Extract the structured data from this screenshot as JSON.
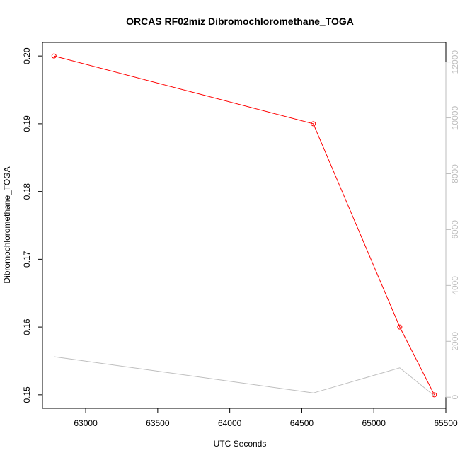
{
  "chart_data": {
    "type": "line",
    "title": "ORCAS RF02miz Dibromochloromethane_TOGA",
    "xlabel": "UTC Seconds",
    "ylabel": "Dibromochloromethane_TOGA",
    "xlim": [
      62700,
      65500
    ],
    "ylim": [
      0.148,
      0.202
    ],
    "y2lim": [
      -400,
      12700
    ],
    "x_ticks": [
      63000,
      63500,
      64000,
      64500,
      65000,
      65500
    ],
    "y_ticks": [
      0.15,
      0.16,
      0.17,
      0.18,
      0.19,
      0.2
    ],
    "y_tick_labels": [
      "0.15",
      "0.16",
      "0.17",
      "0.18",
      "0.19",
      "0.20"
    ],
    "y2_ticks": [
      0,
      2000,
      4000,
      6000,
      8000,
      10000,
      12000
    ],
    "grid": false,
    "series": [
      {
        "axis": "left",
        "color": "#ff0000",
        "markers": "open-circle",
        "x": [
          62780,
          64580,
          65180,
          65420
        ],
        "y": [
          0.2,
          0.19,
          0.16,
          0.15
        ]
      },
      {
        "axis": "right",
        "color": "#bebebe",
        "markers": "none",
        "x": [
          62780,
          64580,
          65180,
          65420
        ],
        "y": [
          1450,
          150,
          1050,
          50
        ]
      }
    ]
  }
}
